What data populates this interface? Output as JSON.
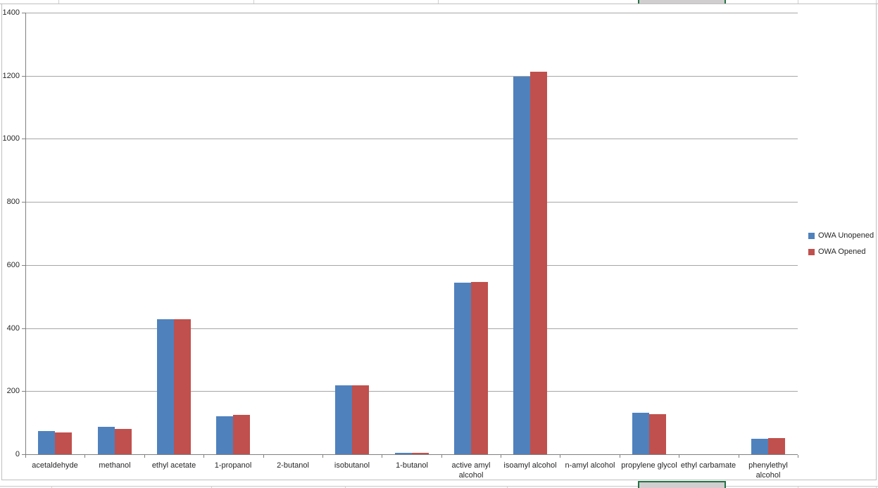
{
  "chart_data": {
    "type": "bar",
    "title": "",
    "xlabel": "",
    "ylabel": "",
    "categories": [
      "acetaldehyde",
      "methanol",
      "ethyl acetate",
      "1-propanol",
      "2-butanol",
      "isobutanol",
      "1-butanol",
      "active amyl alcohol",
      "isoamyl alcohol",
      "n-amyl alcohol",
      "propylene glycol",
      "ethyl carbamate",
      "phenylethyl alcohol"
    ],
    "series": [
      {
        "name": "OWA Unopened",
        "color": "#4F81BD",
        "values": [
          73,
          86,
          429,
          121,
          0,
          218,
          5,
          543,
          1198,
          0,
          131,
          0,
          49
        ]
      },
      {
        "name": "OWA Opened",
        "color": "#C0504D",
        "values": [
          70,
          81,
          427,
          125,
          0,
          219,
          4,
          547,
          1212,
          0,
          126,
          0,
          51
        ]
      }
    ],
    "ylim": [
      0,
      1400
    ],
    "ytick_step": 200,
    "yticks": [
      0,
      200,
      400,
      600,
      800,
      1000,
      1200,
      1400
    ],
    "grid": true,
    "legend_position": "right"
  },
  "colors": {
    "series_blue": "#4F81BD",
    "series_red": "#C0504D",
    "gridline": "#A6A6A6",
    "axis": "#808080",
    "selection_border": "#217346",
    "selection_fill": "#D0CECE"
  }
}
